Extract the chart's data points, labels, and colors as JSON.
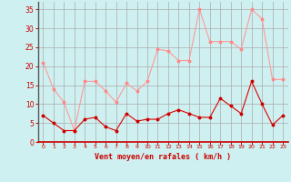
{
  "x": [
    0,
    1,
    2,
    3,
    4,
    5,
    6,
    7,
    8,
    9,
    10,
    11,
    12,
    13,
    14,
    15,
    16,
    17,
    18,
    19,
    20,
    21,
    22,
    23
  ],
  "rafales": [
    21,
    14,
    10.5,
    3,
    16,
    16,
    13.5,
    10.5,
    15.5,
    13.5,
    16,
    24.5,
    24,
    21.5,
    21.5,
    35,
    26.5,
    26.5,
    26.5,
    24.5,
    35,
    32.5,
    16.5,
    16.5
  ],
  "moyen": [
    7,
    5,
    3,
    3,
    6,
    6.5,
    4,
    3,
    7.5,
    5.5,
    6,
    6,
    7.5,
    8.5,
    7.5,
    6.5,
    6.5,
    11.5,
    9.5,
    7.5,
    16,
    10,
    4.5,
    7
  ],
  "bg_color": "#cff0f0",
  "grid_color": "#aaaaaa",
  "line_color_rafales": "#ff9999",
  "line_color_moyen": "#dd0000",
  "marker_color_rafales": "#ff8888",
  "marker_color_moyen": "#cc0000",
  "xlabel": "Vent moyen/en rafales ( km/h )",
  "xlabel_color": "#cc0000",
  "tick_color": "#cc0000",
  "ylim": [
    0,
    37
  ],
  "xlim": [
    -0.5,
    23.5
  ],
  "yticks": [
    0,
    5,
    10,
    15,
    20,
    25,
    30,
    35
  ],
  "xticks": [
    0,
    1,
    2,
    3,
    4,
    5,
    6,
    7,
    8,
    9,
    10,
    11,
    12,
    13,
    14,
    15,
    16,
    17,
    18,
    19,
    20,
    21,
    22,
    23
  ]
}
